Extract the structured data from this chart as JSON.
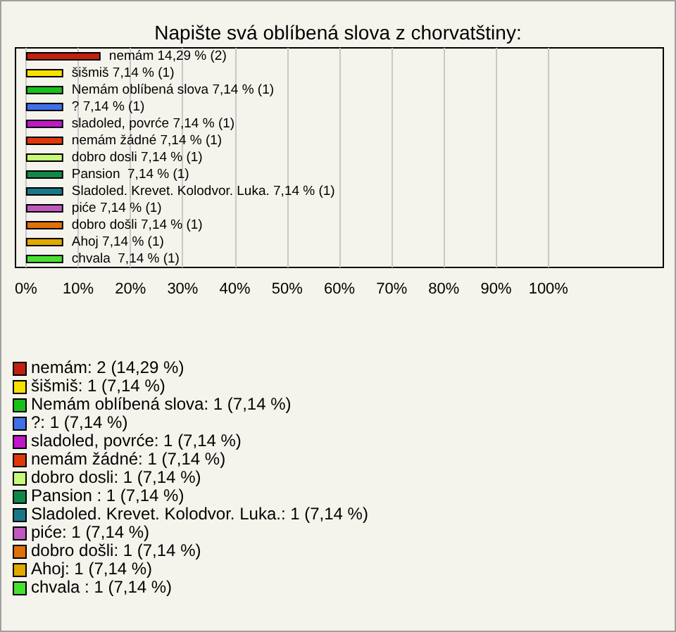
{
  "chart_data": {
    "type": "bar",
    "orientation": "horizontal",
    "title": "Napište svá oblíbená slova z chorvatštiny:",
    "categories": [
      "nemám",
      "šišmiš",
      "Nemám oblíbená slova",
      "?",
      "sladoled, povrće",
      "nemám žádné",
      "dobro dosli",
      "Pansion ",
      "Sladoled. Krevet. Kolodvor. Luka.",
      "piće",
      "dobro došli",
      "Ahoj",
      "chvala "
    ],
    "values": [
      14.29,
      7.14,
      7.14,
      7.14,
      7.14,
      7.14,
      7.14,
      7.14,
      7.14,
      7.14,
      7.14,
      7.14,
      7.14
    ],
    "colors": [
      "#c0200e",
      "#f8e000",
      "#18c018",
      "#4070e8",
      "#c018c8",
      "#e03808",
      "#c8f878",
      "#108848",
      "#187888",
      "#c058c0",
      "#e07008",
      "#e0a800",
      "#48e030"
    ],
    "value_labels": [
      "14,29 % (2)",
      "7,14 % (1)",
      "7,14 % (1)",
      "7,14 % (1)",
      "7,14 % (1)",
      "7,14 % (1)",
      "7,14 % (1)",
      "7,14 % (1)",
      "7,14 % (1)",
      "7,14 % (1)",
      "7,14 % (1)",
      "7,14 % (1)",
      "7,14 % (1)"
    ],
    "xlim": [
      -2,
      122
    ],
    "xticks": [
      {
        "value": 0,
        "label": "0%"
      },
      {
        "value": 10,
        "label": "10%"
      },
      {
        "value": 20,
        "label": "20%"
      },
      {
        "value": 30,
        "label": "30%"
      },
      {
        "value": 40,
        "label": "40%"
      },
      {
        "value": 50,
        "label": "50%"
      },
      {
        "value": 60,
        "label": "60%"
      },
      {
        "value": 70,
        "label": "70%"
      },
      {
        "value": 80,
        "label": "80%"
      },
      {
        "value": 90,
        "label": "90%"
      },
      {
        "value": 100,
        "label": "100%"
      }
    ],
    "grid": "x",
    "tick_labels": "x",
    "annotations": [
      "nemám: 2 (14,29 %)",
      "šišmiš: 1 (7,14 %)",
      "Nemám oblíbená slova: 1 (7,14 %)",
      "?: 1 (7,14 %)",
      "sladoled, povrće: 1 (7,14 %)",
      "nemám žádné: 1 (7,14 %)",
      "dobro dosli: 1 (7,14 %)",
      "Pansion : 1 (7,14 %)",
      "Sladoled. Krevet. Kolodvor. Luka.: 1 (7,14 %)",
      "piće: 1 (7,14 %)",
      "dobro došli: 1 (7,14 %)",
      "Ahoj: 1 (7,14 %)",
      "chvala : 1 (7,14 %)"
    ]
  }
}
